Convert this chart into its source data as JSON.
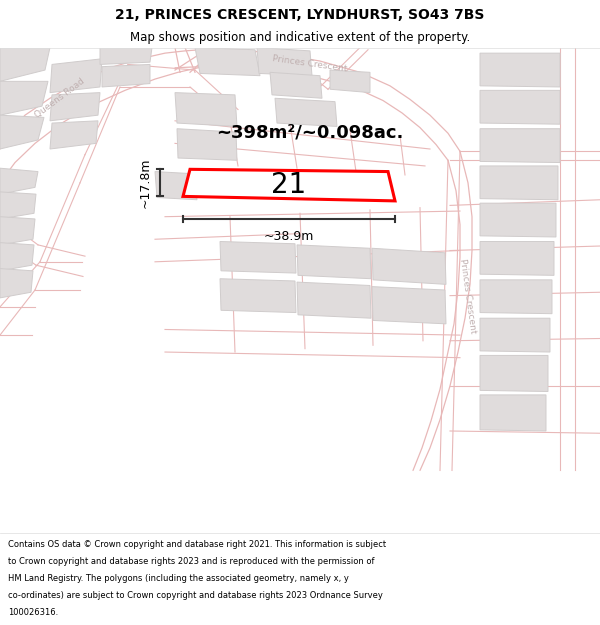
{
  "title": "21, PRINCES CRESCENT, LYNDHURST, SO43 7BS",
  "subtitle": "Map shows position and indicative extent of the property.",
  "footer": "Contains OS data © Crown copyright and database right 2021. This information is subject to Crown copyright and database rights 2023 and is reproduced with the permission of HM Land Registry. The polygons (including the associated geometry, namely x, y co-ordinates) are subject to Crown copyright and database rights 2023 Ordnance Survey 100026316.",
  "area_label": "~398m²/~0.098ac.",
  "number_label": "21",
  "width_label": "~38.9m",
  "height_label": "~17.8m",
  "bg_color": "#ffffff",
  "map_bg": "#f8f7f7",
  "road_line_color": "#e8b8b8",
  "road_fill_color": "#f0ecec",
  "block_color": "#e0dcdc",
  "block_outline": "#d0cccc",
  "plot_color": "#ff0000",
  "plot_fill": "#ffffff",
  "dim_color": "#333333",
  "road_label_color": "#c0b0b0",
  "title_color": "#000000",
  "footer_color": "#000000",
  "title_fontsize": 10,
  "subtitle_fontsize": 8.5,
  "footer_fontsize": 6.0
}
